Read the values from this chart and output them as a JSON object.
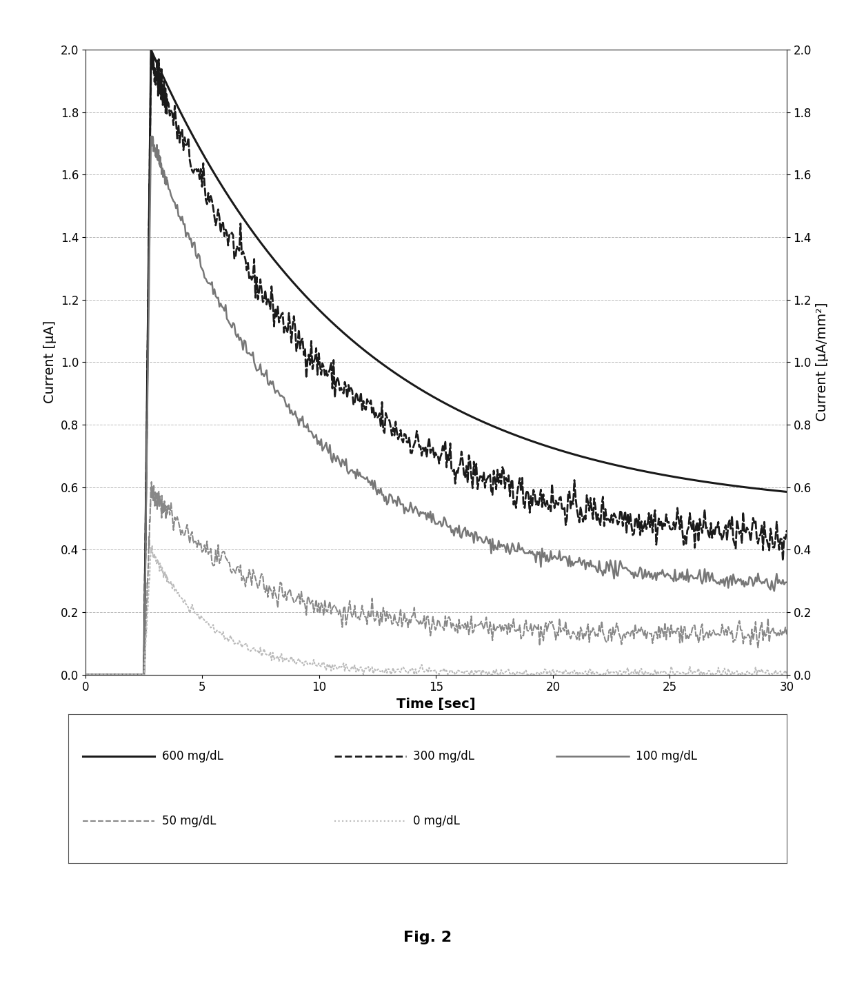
{
  "xlabel": "Time [sec]",
  "ylabel_left": "Current [μA]",
  "ylabel_right": "Current [μA/mm²]",
  "xlim": [
    0,
    30
  ],
  "ylim": [
    0,
    2
  ],
  "xticks": [
    0,
    5,
    10,
    15,
    20,
    25,
    30
  ],
  "yticks": [
    0,
    0.2,
    0.4,
    0.6,
    0.8,
    1.0,
    1.2,
    1.4,
    1.6,
    1.8,
    2.0
  ],
  "figure_caption": "Fig. 2",
  "background_color": "#ffffff",
  "grid_color": "#aaaaaa",
  "legend_fontsize": 12,
  "axis_label_fontsize": 14,
  "tick_fontsize": 12,
  "caption_fontsize": 16,
  "series": [
    {
      "label": "600 mg/dL",
      "color": "#1a1a1a",
      "linestyle": "solid",
      "lw": 2.2,
      "peak": 2.0,
      "t_peak": 2.8,
      "decay": 0.115,
      "floor": 0.52,
      "noise": 0.0
    },
    {
      "label": "300 mg/dL",
      "color": "#1a1a1a",
      "linestyle": "dashed",
      "lw": 2.0,
      "peak": 1.97,
      "t_peak": 2.8,
      "decay": 0.135,
      "floor": 0.4,
      "noise": 0.028
    },
    {
      "label": "100 mg/dL",
      "color": "#777777",
      "linestyle": "solid",
      "lw": 1.8,
      "peak": 1.72,
      "t_peak": 2.8,
      "decay": 0.155,
      "floor": 0.27,
      "noise": 0.012
    },
    {
      "label": "50 mg/dL",
      "color": "#888888",
      "linestyle": "dashed",
      "lw": 1.5,
      "peak": 0.58,
      "t_peak": 2.8,
      "decay": 0.22,
      "floor": 0.13,
      "noise": 0.018
    },
    {
      "label": "0 mg/dL",
      "color": "#bbbbbb",
      "linestyle": "dotted",
      "lw": 1.5,
      "peak": 0.4,
      "t_peak": 2.8,
      "decay": 0.38,
      "floor": 0.005,
      "noise": 0.007
    }
  ]
}
